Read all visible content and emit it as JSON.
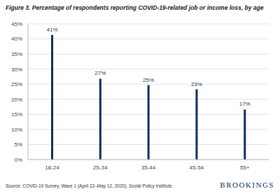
{
  "chart_data": {
    "type": "bar",
    "title": "Figure 3. Percentage of respondents reporting COVID-19-related job or income loss, by age",
    "categories": [
      "18-24",
      "25-34",
      "35-44",
      "45-54",
      "55+"
    ],
    "values": [
      41.3,
      26.8,
      24.7,
      23.3,
      16.6
    ],
    "value_labels": [
      "41%",
      "27%",
      "25%",
      "23%",
      "17%"
    ],
    "data_labels": true,
    "color": "#0b2d5e",
    "ylim": [
      0,
      45
    ],
    "yticks": [
      {
        "value": 0,
        "label": "0%"
      },
      {
        "value": 5,
        "label": "5%"
      },
      {
        "value": 10,
        "label": "10%"
      },
      {
        "value": 15,
        "label": "15%"
      },
      {
        "value": 20,
        "label": "20%"
      },
      {
        "value": 25,
        "label": "25%"
      },
      {
        "value": 30,
        "label": "30%"
      },
      {
        "value": 35,
        "label": "35%"
      },
      {
        "value": 40,
        "label": "40%"
      },
      {
        "value": 45,
        "label": "45%"
      }
    ],
    "grid": true,
    "source": "Source: COVID-19 Survey, Wave 1 (April 22–May 12, 2020), Social Policy Institute.",
    "credit": "BROOKINGS"
  }
}
